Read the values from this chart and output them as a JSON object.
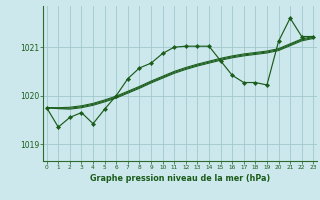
{
  "title": "Graphe pression niveau de la mer (hPa)",
  "background_color": "#cce8ec",
  "grid_color": "#a0c8cc",
  "line_color": "#1a5c1a",
  "x_ticks": [
    0,
    1,
    2,
    3,
    4,
    5,
    6,
    7,
    8,
    9,
    10,
    11,
    12,
    13,
    14,
    15,
    16,
    17,
    18,
    19,
    20,
    21,
    22,
    23
  ],
  "y_ticks": [
    1019,
    1020,
    1021
  ],
  "ylim": [
    1018.65,
    1021.85
  ],
  "xlim": [
    -0.3,
    23.3
  ],
  "series": {
    "main": [
      1019.75,
      1019.35,
      1019.55,
      1019.65,
      1019.42,
      1019.72,
      1020.0,
      1020.35,
      1020.57,
      1020.67,
      1020.87,
      1021.0,
      1021.02,
      1021.02,
      1021.02,
      1020.72,
      1020.42,
      1020.27,
      1020.27,
      1020.22,
      1021.12,
      1021.6,
      1021.22,
      1021.22
    ],
    "smooth1": [
      1019.75,
      1019.75,
      1019.76,
      1019.79,
      1019.84,
      1019.91,
      1019.99,
      1020.09,
      1020.19,
      1020.3,
      1020.4,
      1020.5,
      1020.58,
      1020.65,
      1020.71,
      1020.77,
      1020.82,
      1020.86,
      1020.89,
      1020.92,
      1020.97,
      1021.07,
      1021.17,
      1021.22
    ],
    "smooth2": [
      1019.75,
      1019.74,
      1019.74,
      1019.77,
      1019.82,
      1019.89,
      1019.97,
      1020.07,
      1020.17,
      1020.28,
      1020.38,
      1020.48,
      1020.56,
      1020.63,
      1020.69,
      1020.75,
      1020.8,
      1020.84,
      1020.87,
      1020.9,
      1020.95,
      1021.05,
      1021.15,
      1021.2
    ],
    "smooth3": [
      1019.75,
      1019.73,
      1019.72,
      1019.75,
      1019.8,
      1019.87,
      1019.95,
      1020.05,
      1020.15,
      1020.26,
      1020.36,
      1020.46,
      1020.54,
      1020.61,
      1020.67,
      1020.73,
      1020.78,
      1020.82,
      1020.85,
      1020.88,
      1020.93,
      1021.03,
      1021.13,
      1021.18
    ]
  }
}
